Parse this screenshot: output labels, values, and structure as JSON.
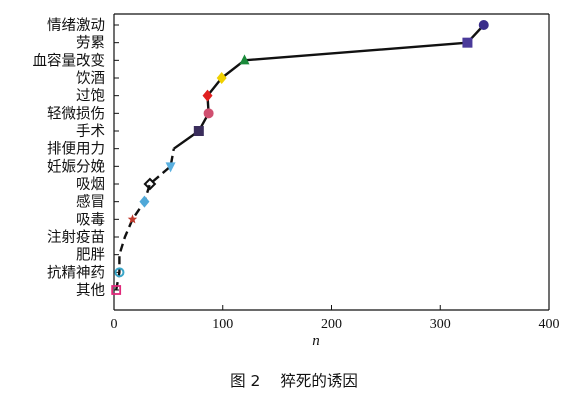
{
  "chart_data": {
    "type": "line",
    "title": "",
    "xlabel": "n",
    "ylabel": "",
    "xlim": [
      0,
      400
    ],
    "xticks": [
      0,
      100,
      200,
      300,
      400
    ],
    "grid": false,
    "categories": [
      "其他",
      "抗精神药",
      "肥胖",
      "注射疫苗",
      "吸毒",
      "感冒",
      "吸烟",
      "妊娠分娩",
      "排便用力",
      "手术",
      "轻微损伤",
      "过饱",
      "饮酒",
      "血容量改变",
      "劳累",
      "情绪激动"
    ],
    "series": [
      {
        "values": [
          2,
          5,
          5,
          10,
          17,
          28,
          33,
          52,
          55,
          78,
          87,
          86,
          99,
          120,
          325,
          340
        ],
        "line_color": "#000000",
        "line_style": "dashed at low n, solid at high n"
      }
    ],
    "markers": [
      {
        "category": "其他",
        "shape": "square-open",
        "color": "#e0287a"
      },
      {
        "category": "抗精神药",
        "shape": "circle-open",
        "color": "#3aa6c8"
      },
      {
        "category": "吸毒",
        "shape": "star",
        "color": "#c0392b"
      },
      {
        "category": "感冒",
        "shape": "diamond",
        "color": "#4fa8d8"
      },
      {
        "category": "吸烟",
        "shape": "diamond-open",
        "color": "#111111"
      },
      {
        "category": "妊娠分娩",
        "shape": "triangle-down",
        "color": "#5ab0e0"
      },
      {
        "category": "手术",
        "shape": "square",
        "color": "#3a2d5c"
      },
      {
        "category": "轻微损伤",
        "shape": "circle",
        "color": "#d05070"
      },
      {
        "category": "过饱",
        "shape": "diamond",
        "color": "#e02020"
      },
      {
        "category": "饮酒",
        "shape": "diamond",
        "color": "#f0d000"
      },
      {
        "category": "血容量改变",
        "shape": "triangle-up",
        "color": "#1a8a3a"
      },
      {
        "category": "劳累",
        "shape": "square",
        "color": "#4a3a9a"
      },
      {
        "category": "情绪激动",
        "shape": "circle",
        "color": "#3a2d8a"
      }
    ]
  },
  "figure": {
    "caption_num": "图 2",
    "caption_text": "猝死的诱因"
  }
}
